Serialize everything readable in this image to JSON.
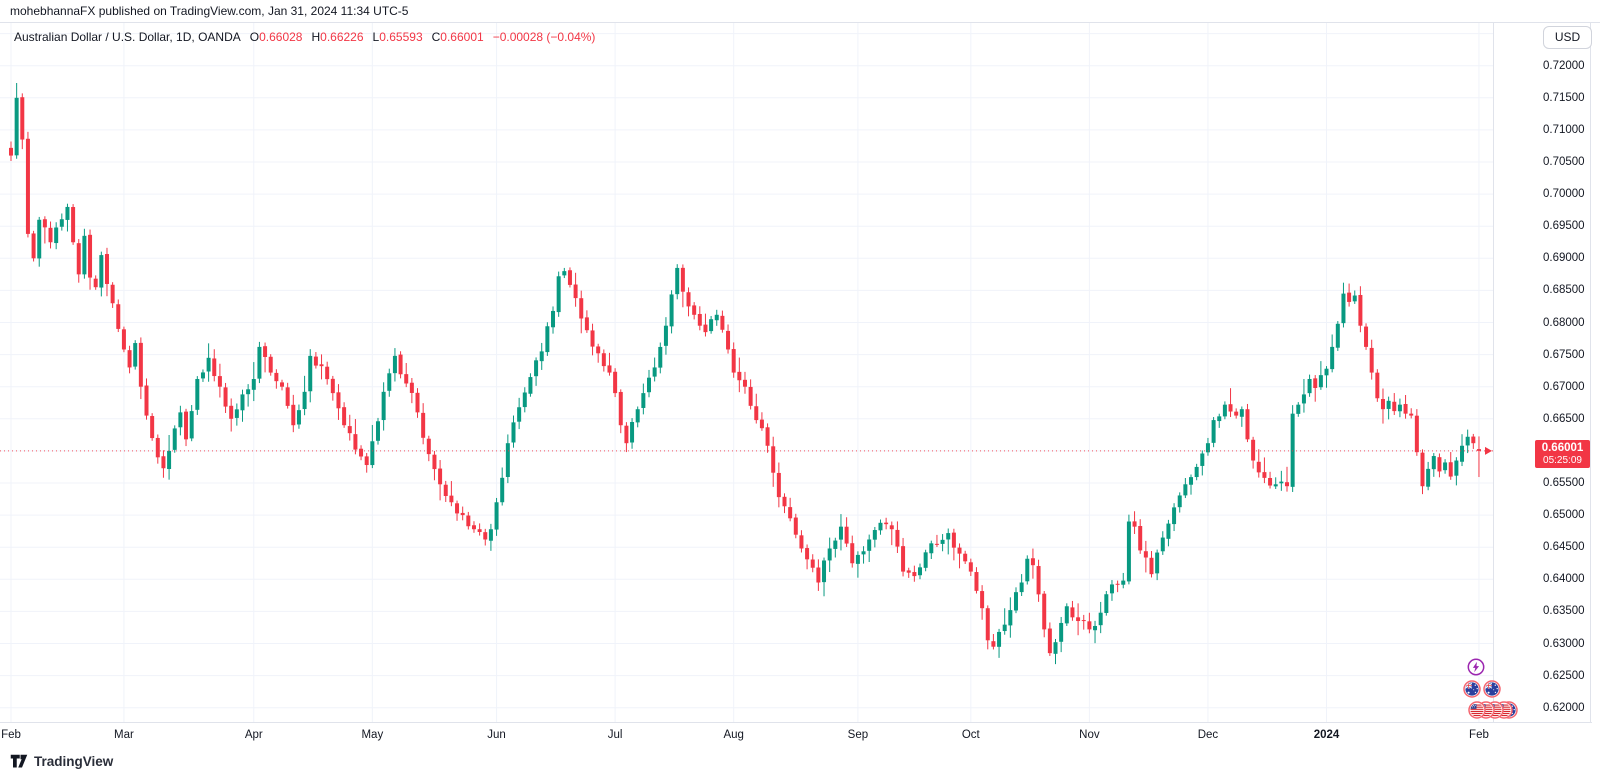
{
  "attribution": {
    "text": "mohebhannaFX published on TradingView.com, Jan 31, 2024 11:34 UTC-5"
  },
  "header": {
    "symbol_title": "Australian Dollar / U.S. Dollar, 1D, OANDA",
    "ohlc": [
      {
        "label": "O",
        "value": "0.66028"
      },
      {
        "label": "H",
        "value": "0.66226"
      },
      {
        "label": "L",
        "value": "0.65593"
      },
      {
        "label": "C",
        "value": "0.66001"
      }
    ],
    "change": "−0.00028 (−0.04%)",
    "values_color": "#f23645"
  },
  "currency_button": {
    "label": "USD"
  },
  "price_badge": {
    "value": "0.66001",
    "countdown": "05:25:09",
    "color": "#f23645"
  },
  "footer": {
    "logo_text": "TradingView"
  },
  "event_icons": [
    {
      "type": "lightning",
      "name": "economic-event-lightning-icon",
      "count": 1
    },
    {
      "type": "au-flag",
      "name": "australia-flag-event-icon",
      "count": 2
    },
    {
      "type": "us-flag",
      "name": "us-flag-event-icon",
      "count": 4,
      "trailing": "au-flag"
    }
  ],
  "colors": {
    "up": "#089981",
    "down": "#f23645",
    "grid": "#f0f3fa",
    "axis_border": "#e0e3eb",
    "accent_red": "#f23645",
    "purple": "#9c27b0"
  },
  "chart_data": {
    "type": "candlestick",
    "symbol": "AUD/USD",
    "timeframe": "1D",
    "exchange": "OANDA",
    "title": "Australian Dollar / U.S. Dollar, 1D, OANDA",
    "grid": true,
    "legend_position": "top-left",
    "y_axis": {
      "side": "right",
      "visible_min": 0.6185,
      "visible_max": 0.7215,
      "tick_step": 0.005,
      "ticks": [
        {
          "v": 0.72,
          "label": "0.72000"
        },
        {
          "v": 0.715,
          "label": "0.71500"
        },
        {
          "v": 0.71,
          "label": "0.71000"
        },
        {
          "v": 0.705,
          "label": "0.70500"
        },
        {
          "v": 0.7,
          "label": "0.70000"
        },
        {
          "v": 0.695,
          "label": "0.69500"
        },
        {
          "v": 0.69,
          "label": "0.69000"
        },
        {
          "v": 0.685,
          "label": "0.68500"
        },
        {
          "v": 0.68,
          "label": "0.68000"
        },
        {
          "v": 0.675,
          "label": "0.67500"
        },
        {
          "v": 0.67,
          "label": "0.67000"
        },
        {
          "v": 0.665,
          "label": "0.66500"
        },
        {
          "v": 0.66,
          "label": "0.66000"
        },
        {
          "v": 0.655,
          "label": "0.65500"
        },
        {
          "v": 0.65,
          "label": "0.65000"
        },
        {
          "v": 0.645,
          "label": "0.64500"
        },
        {
          "v": 0.64,
          "label": "0.64000"
        },
        {
          "v": 0.635,
          "label": "0.63500"
        },
        {
          "v": 0.63,
          "label": "0.63000"
        },
        {
          "v": 0.625,
          "label": "0.62500"
        },
        {
          "v": 0.62,
          "label": "0.62000"
        }
      ],
      "extra_gridlines": [
        0.725
      ]
    },
    "x_axis": {
      "ticks": [
        {
          "label": "Feb",
          "day": 0
        },
        {
          "label": "Mar",
          "day": 20
        },
        {
          "label": "Apr",
          "day": 43
        },
        {
          "label": "May",
          "day": 64
        },
        {
          "label": "Jun",
          "day": 86
        },
        {
          "label": "Jul",
          "day": 107
        },
        {
          "label": "Aug",
          "day": 128
        },
        {
          "label": "Sep",
          "day": 150
        },
        {
          "label": "Oct",
          "day": 170
        },
        {
          "label": "Nov",
          "day": 191
        },
        {
          "label": "Dec",
          "day": 212
        },
        {
          "label": "2024",
          "day": 233,
          "bold": true
        },
        {
          "label": "Feb",
          "day": 260
        }
      ]
    },
    "price_line": {
      "value": 0.66001,
      "style": "dotted",
      "color": "#f23645",
      "countdown": "05:25:09"
    },
    "last_candle": {
      "open": 0.66028,
      "high": 0.66226,
      "low": 0.65593,
      "close": 0.66001,
      "change": -0.00028,
      "change_pct": -0.04
    },
    "candles": {
      "count": 261,
      "up_color": "#089981",
      "down_color": "#f23645",
      "seed": 20240131,
      "close_anchors": [
        [
          0,
          0.706
        ],
        [
          1,
          0.715
        ],
        [
          2,
          0.7085
        ],
        [
          3,
          0.6938
        ],
        [
          4,
          0.69
        ],
        [
          5,
          0.696
        ],
        [
          7,
          0.6925
        ],
        [
          8,
          0.6948
        ],
        [
          10,
          0.698
        ],
        [
          11,
          0.6925
        ],
        [
          12,
          0.6875
        ],
        [
          13,
          0.6935
        ],
        [
          14,
          0.687
        ],
        [
          15,
          0.6855
        ],
        [
          16,
          0.6905
        ],
        [
          17,
          0.686
        ],
        [
          18,
          0.683
        ],
        [
          19,
          0.679
        ],
        [
          20,
          0.6758
        ],
        [
          21,
          0.673
        ],
        [
          22,
          0.6768
        ],
        [
          23,
          0.67
        ],
        [
          24,
          0.6655
        ],
        [
          25,
          0.662
        ],
        [
          26,
          0.659
        ],
        [
          27,
          0.6573
        ],
        [
          28,
          0.66
        ],
        [
          29,
          0.6635
        ],
        [
          30,
          0.666
        ],
        [
          31,
          0.6618
        ],
        [
          32,
          0.6662
        ],
        [
          33,
          0.6712
        ],
        [
          35,
          0.6745
        ],
        [
          37,
          0.67
        ],
        [
          39,
          0.665
        ],
        [
          41,
          0.6688
        ],
        [
          43,
          0.6712
        ],
        [
          44,
          0.6762
        ],
        [
          46,
          0.6722
        ],
        [
          48,
          0.67
        ],
        [
          50,
          0.664
        ],
        [
          52,
          0.6692
        ],
        [
          53,
          0.6748
        ],
        [
          55,
          0.6732
        ],
        [
          57,
          0.669
        ],
        [
          59,
          0.664
        ],
        [
          61,
          0.6602
        ],
        [
          63,
          0.6578
        ],
        [
          64,
          0.6615
        ],
        [
          66,
          0.6692
        ],
        [
          68,
          0.6748
        ],
        [
          70,
          0.6705
        ],
        [
          72,
          0.666
        ],
        [
          74,
          0.6595
        ],
        [
          76,
          0.6548
        ],
        [
          78,
          0.652
        ],
        [
          80,
          0.65
        ],
        [
          82,
          0.6478
        ],
        [
          84,
          0.6462
        ],
        [
          85,
          0.6478
        ],
        [
          86,
          0.652
        ],
        [
          88,
          0.6612
        ],
        [
          90,
          0.6668
        ],
        [
          92,
          0.6715
        ],
        [
          94,
          0.6755
        ],
        [
          96,
          0.6818
        ],
        [
          97,
          0.6872
        ],
        [
          98,
          0.688
        ],
        [
          100,
          0.6838
        ],
        [
          102,
          0.6788
        ],
        [
          104,
          0.6752
        ],
        [
          106,
          0.6722
        ],
        [
          107,
          0.669
        ],
        [
          108,
          0.664
        ],
        [
          109,
          0.6612
        ],
        [
          110,
          0.6645
        ],
        [
          112,
          0.669
        ],
        [
          114,
          0.673
        ],
        [
          116,
          0.6795
        ],
        [
          118,
          0.6885
        ],
        [
          119,
          0.6848
        ],
        [
          121,
          0.6812
        ],
        [
          123,
          0.6785
        ],
        [
          125,
          0.6812
        ],
        [
          127,
          0.6758
        ],
        [
          128,
          0.6722
        ],
        [
          130,
          0.67
        ],
        [
          132,
          0.6648
        ],
        [
          134,
          0.6608
        ],
        [
          136,
          0.6528
        ],
        [
          138,
          0.6495
        ],
        [
          140,
          0.6448
        ],
        [
          142,
          0.6418
        ],
        [
          143,
          0.6395
        ],
        [
          145,
          0.6448
        ],
        [
          147,
          0.6482
        ],
        [
          149,
          0.6425
        ],
        [
          150,
          0.6438
        ],
        [
          152,
          0.6462
        ],
        [
          154,
          0.6488
        ],
        [
          156,
          0.6478
        ],
        [
          158,
          0.6412
        ],
        [
          160,
          0.6405
        ],
        [
          162,
          0.6442
        ],
        [
          164,
          0.6455
        ],
        [
          166,
          0.6472
        ],
        [
          168,
          0.644
        ],
        [
          169,
          0.6428
        ],
        [
          170,
          0.6412
        ],
        [
          171,
          0.6382
        ],
        [
          172,
          0.6355
        ],
        [
          173,
          0.6305
        ],
        [
          174,
          0.6295
        ],
        [
          175,
          0.6318
        ],
        [
          177,
          0.6352
        ],
        [
          179,
          0.6395
        ],
        [
          180,
          0.6432
        ],
        [
          181,
          0.6422
        ],
        [
          183,
          0.6322
        ],
        [
          184,
          0.6285
        ],
        [
          185,
          0.6302
        ],
        [
          186,
          0.6332
        ],
        [
          187,
          0.6358
        ],
        [
          189,
          0.6335
        ],
        [
          191,
          0.6322
        ],
        [
          193,
          0.6348
        ],
        [
          195,
          0.6392
        ],
        [
          196,
          0.6392
        ],
        [
          197,
          0.6398
        ],
        [
          198,
          0.649
        ],
        [
          199,
          0.6482
        ],
        [
          200,
          0.6445
        ],
        [
          202,
          0.6408
        ],
        [
          204,
          0.6465
        ],
        [
          206,
          0.6512
        ],
        [
          208,
          0.6548
        ],
        [
          210,
          0.6575
        ],
        [
          212,
          0.6612
        ],
        [
          213,
          0.6648
        ],
        [
          215,
          0.6672
        ],
        [
          217,
          0.6655
        ],
        [
          218,
          0.6665
        ],
        [
          219,
          0.6618
        ],
        [
          220,
          0.6585
        ],
        [
          222,
          0.6558
        ],
        [
          224,
          0.6548
        ],
        [
          226,
          0.6545
        ],
        [
          227,
          0.6658
        ],
        [
          228,
          0.6672
        ],
        [
          229,
          0.6688
        ],
        [
          230,
          0.6712
        ],
        [
          231,
          0.6698
        ],
        [
          232,
          0.6718
        ],
        [
          233,
          0.6728
        ],
        [
          234,
          0.6762
        ],
        [
          235,
          0.6798
        ],
        [
          236,
          0.6845
        ],
        [
          237,
          0.6832
        ],
        [
          238,
          0.6842
        ],
        [
          239,
          0.6795
        ],
        [
          240,
          0.6762
        ],
        [
          241,
          0.6722
        ],
        [
          242,
          0.6682
        ],
        [
          243,
          0.6665
        ],
        [
          244,
          0.6678
        ],
        [
          245,
          0.6662
        ],
        [
          246,
          0.6672
        ],
        [
          247,
          0.6658
        ],
        [
          248,
          0.6655
        ],
        [
          249,
          0.6598
        ],
        [
          250,
          0.6545
        ],
        [
          251,
          0.6572
        ],
        [
          252,
          0.6592
        ],
        [
          253,
          0.6568
        ],
        [
          254,
          0.6582
        ],
        [
          255,
          0.656
        ],
        [
          256,
          0.6585
        ],
        [
          257,
          0.6608
        ],
        [
          258,
          0.6622
        ],
        [
          259,
          0.6612
        ],
        [
          260,
          0.66001
        ]
      ]
    }
  }
}
